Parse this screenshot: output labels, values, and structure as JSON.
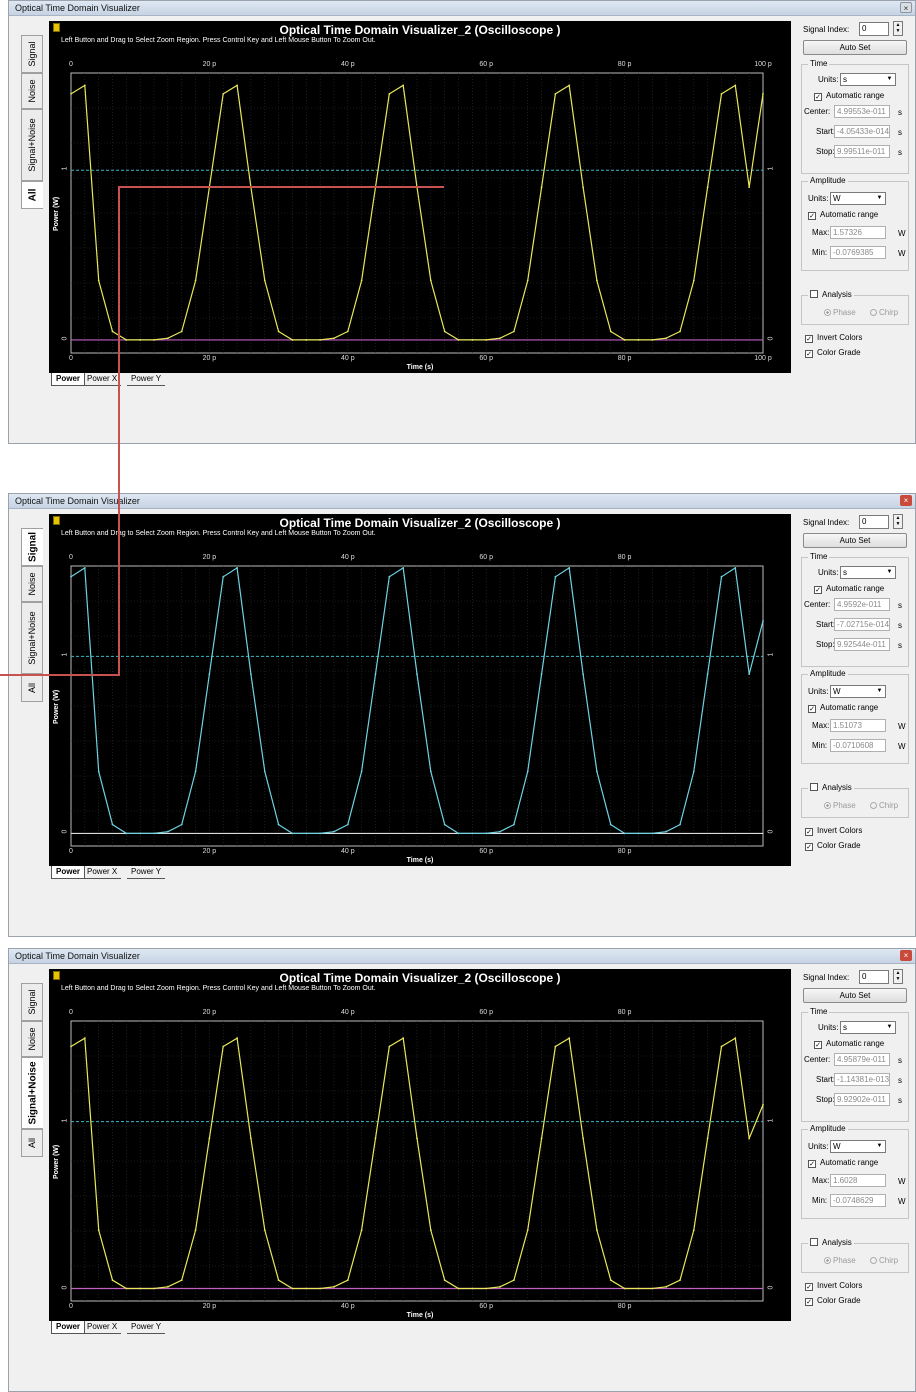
{
  "colors": {
    "trace_yellow": "#e8e85a",
    "trace_cyan": "#6fd3e2",
    "connector": "#c65252",
    "dashed_cyan": "#3fb8c8"
  },
  "windows": [
    {
      "id": "w1",
      "title": "Optical Time Domain Visualizer",
      "close_style": "gray",
      "plot_title": "Optical Time Domain Visualizer_2 (Oscilloscope )",
      "instruction": "Left Button and Drag to Select Zoom Region. Press Control Key and Left Mouse Button To Zoom Out.",
      "vtabs": [
        "Signal",
        "Noise",
        "Signal+Noise",
        "All"
      ],
      "selected_tab": 3,
      "x_ticks": [
        "0",
        "20 p",
        "40 p",
        "60 p",
        "80 p",
        "100 p"
      ],
      "x_title": "Time (s)",
      "y_title": "Power (W)",
      "y_ticks": [
        "0",
        "1"
      ],
      "right_y_ticks": [
        "0",
        "1"
      ],
      "bottom_tabs": [
        "Power",
        "Power X",
        "Power Y"
      ],
      "signal_index_label": "Signal Index:",
      "signal_index": "0",
      "auto_set": "Auto Set",
      "time_group": "Time",
      "units_label": "Units:",
      "time_units": "s",
      "auto_range_label": "Automatic range",
      "center_label": "Center:",
      "center": "4.99553e-011",
      "start_label": "Start:",
      "start": "-4.05433e-014",
      "stop_label": "Stop:",
      "stop": "9.99511e-011",
      "unit_s": "s",
      "amplitude_group": "Amplitude",
      "amp_units": "W",
      "max_label": "Max:",
      "max": "1.57326",
      "min_label": "Min:",
      "min": "-0.0769385",
      "unit_w": "W",
      "analysis_label": "Analysis",
      "phase_label": "Phase",
      "chirp_label": "Chirp",
      "invert_label": "Invert Colors",
      "grade_label": "Color Grade"
    },
    {
      "id": "w2",
      "title": "Optical Time Domain Visualizer",
      "close_style": "red",
      "plot_title": "Optical Time Domain Visualizer_2 (Oscilloscope )",
      "instruction": "Left Button and Drag to Select Zoom Region. Press Control Key and Left Mouse Button To Zoom Out.",
      "vtabs": [
        "Signal",
        "Noise",
        "Signal+Noise",
        "All"
      ],
      "selected_tab": 0,
      "x_ticks": [
        "0",
        "20 p",
        "40 p",
        "60 p",
        "80 p"
      ],
      "x_title": "Time (s)",
      "y_title": "Power (W)",
      "y_ticks": [
        "0",
        "1"
      ],
      "right_y_ticks": [
        "0",
        "1"
      ],
      "bottom_tabs": [
        "Power",
        "Power X",
        "Power Y"
      ],
      "signal_index_label": "Signal Index:",
      "signal_index": "0",
      "auto_set": "Auto Set",
      "time_group": "Time",
      "units_label": "Units:",
      "time_units": "s",
      "auto_range_label": "Automatic range",
      "center_label": "Center:",
      "center": "4.9592e-011",
      "start_label": "Start:",
      "start": "-7.02715e-014",
      "stop_label": "Stop:",
      "stop": "9.92544e-011",
      "unit_s": "s",
      "amplitude_group": "Amplitude",
      "amp_units": "W",
      "max_label": "Max:",
      "max": "1.51073",
      "min_label": "Min:",
      "min": "-0.0710608",
      "unit_w": "W",
      "analysis_label": "Analysis",
      "phase_label": "Phase",
      "chirp_label": "Chirp",
      "invert_label": "Invert Colors",
      "grade_label": "Color Grade"
    },
    {
      "id": "w3",
      "title": "Optical Time Domain Visualizer",
      "close_style": "red",
      "plot_title": "Optical Time Domain Visualizer_2 (Oscilloscope )",
      "instruction": "Left Button and Drag to Select Zoom Region. Press Control Key and Left Mouse Button To Zoom Out.",
      "vtabs": [
        "Signal",
        "Noise",
        "Signal+Noise",
        "All"
      ],
      "selected_tab": 2,
      "x_ticks": [
        "0",
        "20 p",
        "40 p",
        "60 p",
        "80 p"
      ],
      "x_title": "Time (s)",
      "y_title": "Power (W)",
      "y_ticks": [
        "0",
        "1"
      ],
      "right_y_ticks": [
        "0",
        "1"
      ],
      "bottom_tabs": [
        "Power",
        "Power X",
        "Power Y"
      ],
      "signal_index_label": "Signal Index:",
      "signal_index": "0",
      "auto_set": "Auto Set",
      "time_group": "Time",
      "units_label": "Units:",
      "time_units": "s",
      "auto_range_label": "Automatic range",
      "center_label": "Center:",
      "center": "4.95879e-011",
      "start_label": "Start:",
      "start": "-1.14381e-013",
      "stop_label": "Stop:",
      "stop": "9.92902e-011",
      "unit_s": "s",
      "amplitude_group": "Amplitude",
      "amp_units": "W",
      "max_label": "Max:",
      "max": "1.6028",
      "min_label": "Min:",
      "min": "-0.0748629",
      "unit_w": "W",
      "analysis_label": "Analysis",
      "phase_label": "Phase",
      "chirp_label": "Chirp",
      "invert_label": "Invert Colors",
      "grade_label": "Color Grade"
    }
  ],
  "chart_data": [
    {
      "type": "line",
      "xlabel": "Time (s)",
      "ylabel": "Power (W)",
      "xlim": [
        0,
        100
      ],
      "ylim": [
        -0.0769385,
        1.57326
      ],
      "series": [
        {
          "color": "#e8e85a",
          "x": [
            0,
            2,
            4,
            6,
            8,
            10,
            12,
            14,
            16,
            18,
            20,
            22,
            24,
            26,
            28,
            30,
            32,
            34,
            36,
            38,
            40,
            42,
            44,
            46,
            48,
            50,
            52,
            54,
            56,
            58,
            60,
            62,
            64,
            66,
            68,
            70,
            72,
            74,
            76,
            78,
            80,
            82,
            84,
            86,
            88,
            90,
            92,
            94,
            96,
            98,
            100
          ],
          "y": [
            1.45,
            1.5,
            0.35,
            0.05,
            0.0,
            0.0,
            0.0,
            0.01,
            0.05,
            0.35,
            0.9,
            1.45,
            1.5,
            0.9,
            0.35,
            0.05,
            0.0,
            0.0,
            0.0,
            0.01,
            0.05,
            0.35,
            0.9,
            1.45,
            1.5,
            0.9,
            0.35,
            0.05,
            0.0,
            0.0,
            0.0,
            0.01,
            0.05,
            0.35,
            0.9,
            1.45,
            1.5,
            0.9,
            0.35,
            0.05,
            0.0,
            0.0,
            0.0,
            0.01,
            0.05,
            0.35,
            0.9,
            1.45,
            1.5,
            0.9,
            1.45
          ]
        }
      ]
    },
    {
      "type": "line",
      "xlabel": "Time (s)",
      "ylabel": "Power (W)",
      "xlim": [
        0,
        100
      ],
      "ylim": [
        -0.0710608,
        1.51073
      ],
      "series": [
        {
          "color": "#6fd3e2",
          "x": [
            0,
            2,
            4,
            6,
            8,
            10,
            12,
            14,
            16,
            18,
            20,
            22,
            24,
            26,
            28,
            30,
            32,
            34,
            36,
            38,
            40,
            42,
            44,
            46,
            48,
            50,
            52,
            54,
            56,
            58,
            60,
            62,
            64,
            66,
            68,
            70,
            72,
            74,
            76,
            78,
            80,
            82,
            84,
            86,
            88,
            90,
            92,
            94,
            96,
            98,
            100
          ],
          "y": [
            1.45,
            1.5,
            0.35,
            0.05,
            0.0,
            0.0,
            0.0,
            0.01,
            0.05,
            0.35,
            0.9,
            1.45,
            1.5,
            0.9,
            0.35,
            0.05,
            0.0,
            0.0,
            0.0,
            0.01,
            0.05,
            0.35,
            0.9,
            1.45,
            1.5,
            0.9,
            0.35,
            0.05,
            0.0,
            0.0,
            0.0,
            0.01,
            0.05,
            0.35,
            0.9,
            1.45,
            1.5,
            0.9,
            0.35,
            0.05,
            0.0,
            0.0,
            0.0,
            0.01,
            0.05,
            0.35,
            0.9,
            1.45,
            1.5,
            0.9,
            1.2
          ]
        }
      ]
    },
    {
      "type": "line",
      "xlabel": "Time (s)",
      "ylabel": "Power (W)",
      "xlim": [
        0,
        100
      ],
      "ylim": [
        -0.0748629,
        1.6028
      ],
      "series": [
        {
          "color": "#e8e85a",
          "x": [
            0,
            2,
            4,
            6,
            8,
            10,
            12,
            14,
            16,
            18,
            20,
            22,
            24,
            26,
            28,
            30,
            32,
            34,
            36,
            38,
            40,
            42,
            44,
            46,
            48,
            50,
            52,
            54,
            56,
            58,
            60,
            62,
            64,
            66,
            68,
            70,
            72,
            74,
            76,
            78,
            80,
            82,
            84,
            86,
            88,
            90,
            92,
            94,
            96,
            98,
            100
          ],
          "y": [
            1.45,
            1.5,
            0.35,
            0.05,
            0.0,
            0.0,
            0.0,
            0.01,
            0.05,
            0.35,
            0.9,
            1.45,
            1.5,
            0.9,
            0.35,
            0.05,
            0.0,
            0.0,
            0.0,
            0.01,
            0.05,
            0.35,
            0.9,
            1.45,
            1.5,
            0.9,
            0.35,
            0.05,
            0.0,
            0.0,
            0.0,
            0.01,
            0.05,
            0.35,
            0.9,
            1.45,
            1.5,
            0.9,
            0.35,
            0.05,
            0.0,
            0.0,
            0.0,
            0.01,
            0.05,
            0.35,
            0.9,
            1.45,
            1.5,
            0.9,
            1.1
          ]
        }
      ]
    }
  ]
}
